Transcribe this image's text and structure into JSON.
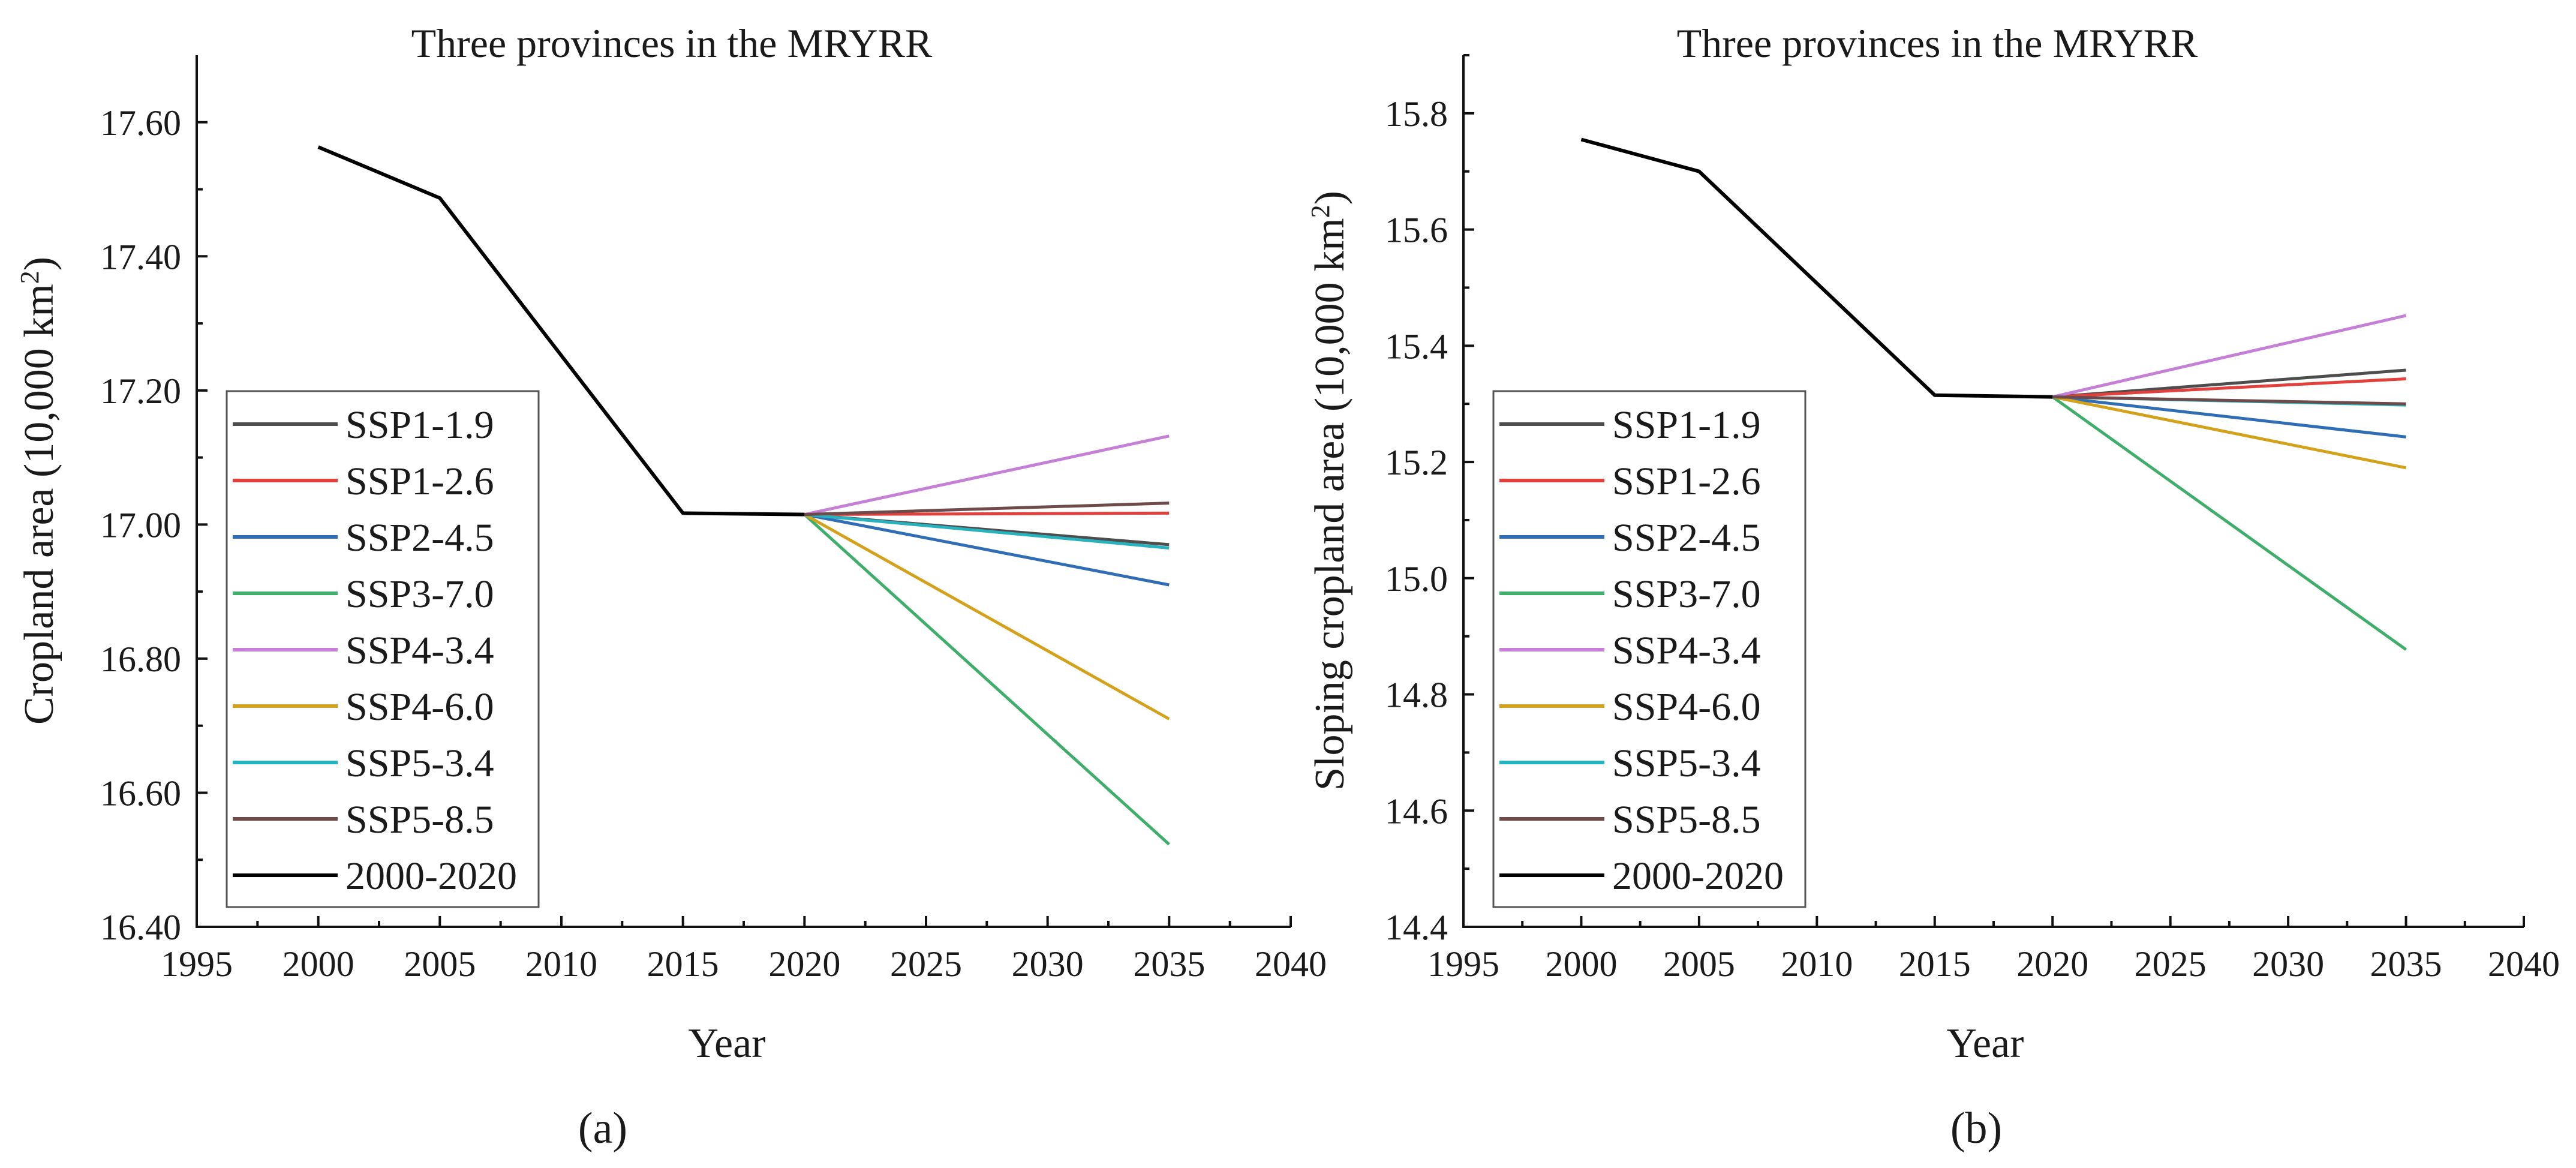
{
  "chart_data": [
    {
      "type": "line",
      "panel_label": "(a)",
      "title": "Three provinces in the MRYRR",
      "xlabel": "Year",
      "ylabel": "Cropland area (10,000 km²)",
      "ylabel_parts": {
        "before": "Cropland area (10,000 km",
        "sup": "2",
        "after": ")"
      },
      "xlim": [
        1995,
        2040
      ],
      "ylim": [
        16.4,
        17.7
      ],
      "x_ticks": [
        1995,
        2000,
        2005,
        2010,
        2015,
        2020,
        2025,
        2030,
        2035,
        2040
      ],
      "x_tick_labels": [
        "1995",
        "2000",
        "2005",
        "2010",
        "2015",
        "2020",
        "2025",
        "2030",
        "2035",
        "2040"
      ],
      "y_ticks": [
        16.4,
        16.6,
        16.8,
        17.0,
        17.2,
        17.4,
        17.6
      ],
      "y_tick_labels": [
        "16.40",
        "16.60",
        "16.80",
        "17.00",
        "17.20",
        "17.40",
        "17.60"
      ],
      "legend_position": "lower-left",
      "series": [
        {
          "name": "SSP1-1.9",
          "color": "#4d4d4d",
          "x": [
            2020,
            2035
          ],
          "y": [
            17.015,
            16.97
          ]
        },
        {
          "name": "SSP1-2.6",
          "color": "#e0413c",
          "x": [
            2020,
            2035
          ],
          "y": [
            17.015,
            17.017
          ]
        },
        {
          "name": "SSP2-4.5",
          "color": "#2f6db5",
          "x": [
            2020,
            2035
          ],
          "y": [
            17.015,
            16.91
          ]
        },
        {
          "name": "SSP3-7.0",
          "color": "#3fae6a",
          "x": [
            2020,
            2035
          ],
          "y": [
            17.015,
            16.523
          ]
        },
        {
          "name": "SSP4-3.4",
          "color": "#c57fd6",
          "x": [
            2020,
            2035
          ],
          "y": [
            17.015,
            17.132
          ]
        },
        {
          "name": "SSP4-6.0",
          "color": "#d4a21a",
          "x": [
            2020,
            2035
          ],
          "y": [
            17.015,
            16.71
          ]
        },
        {
          "name": "SSP5-3.4",
          "color": "#27b3be",
          "x": [
            2020,
            2035
          ],
          "y": [
            17.015,
            16.965
          ]
        },
        {
          "name": "SSP5-8.5",
          "color": "#6e4a4a",
          "x": [
            2020,
            2035
          ],
          "y": [
            17.015,
            17.032
          ]
        },
        {
          "name": "2000-2020",
          "color": "#000000",
          "x": [
            2000,
            2005,
            2015,
            2020
          ],
          "y": [
            17.563,
            17.487,
            17.017,
            17.015
          ]
        }
      ]
    },
    {
      "type": "line",
      "panel_label": "(b)",
      "title": "Three provinces in the MRYRR",
      "xlabel": "Year",
      "ylabel": "Sloping cropland area (10,000 km²)",
      "ylabel_parts": {
        "before": "Sloping cropland area (10,000 km",
        "sup": "2",
        "after": ")"
      },
      "xlim": [
        1995,
        2040
      ],
      "ylim": [
        14.4,
        15.9
      ],
      "x_ticks": [
        1995,
        2000,
        2005,
        2010,
        2015,
        2020,
        2025,
        2030,
        2035,
        2040
      ],
      "x_tick_labels": [
        "1995",
        "2000",
        "2005",
        "2010",
        "2015",
        "2020",
        "2025",
        "2030",
        "2035",
        "2040"
      ],
      "y_ticks": [
        14.4,
        14.6,
        14.8,
        15.0,
        15.2,
        15.4,
        15.6,
        15.8
      ],
      "y_tick_labels": [
        "14.4",
        "14.6",
        "14.8",
        "15.0",
        "15.2",
        "15.4",
        "15.6",
        "15.8"
      ],
      "legend_position": "lower-left",
      "series": [
        {
          "name": "SSP1-1.9",
          "color": "#4d4d4d",
          "x": [
            2020,
            2035
          ],
          "y": [
            15.312,
            15.358
          ]
        },
        {
          "name": "SSP1-2.6",
          "color": "#e0413c",
          "x": [
            2020,
            2035
          ],
          "y": [
            15.312,
            15.343
          ]
        },
        {
          "name": "SSP2-4.5",
          "color": "#2f6db5",
          "x": [
            2020,
            2035
          ],
          "y": [
            15.312,
            15.243
          ]
        },
        {
          "name": "SSP3-7.0",
          "color": "#3fae6a",
          "x": [
            2020,
            2035
          ],
          "y": [
            15.312,
            14.877
          ]
        },
        {
          "name": "SSP4-3.4",
          "color": "#c57fd6",
          "x": [
            2020,
            2035
          ],
          "y": [
            15.312,
            15.452
          ]
        },
        {
          "name": "SSP4-6.0",
          "color": "#d4a21a",
          "x": [
            2020,
            2035
          ],
          "y": [
            15.312,
            15.19
          ]
        },
        {
          "name": "SSP5-3.4",
          "color": "#27b3be",
          "x": [
            2020,
            2035
          ],
          "y": [
            15.312,
            15.298
          ]
        },
        {
          "name": "SSP5-8.5",
          "color": "#6e4a4a",
          "x": [
            2020,
            2035
          ],
          "y": [
            15.312,
            15.3
          ]
        },
        {
          "name": "2000-2020",
          "color": "#000000",
          "x": [
            2000,
            2005,
            2015,
            2020
          ],
          "y": [
            15.755,
            15.7,
            15.315,
            15.312
          ]
        }
      ]
    }
  ]
}
